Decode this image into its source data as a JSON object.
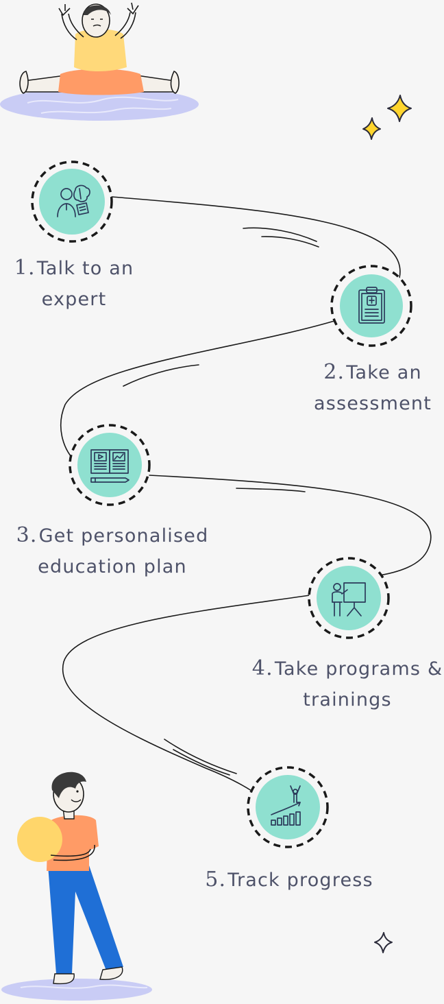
{
  "steps": [
    {
      "number": "1.",
      "lines": [
        "Talk to an",
        "expert"
      ],
      "icon": "expert-brain-icon"
    },
    {
      "number": "2.",
      "lines": [
        "Take an",
        "assessment"
      ],
      "icon": "clipboard-medical-icon"
    },
    {
      "number": "3.",
      "lines": [
        "Get personalised",
        "education plan"
      ],
      "icon": "open-book-icon"
    },
    {
      "number": "4.",
      "lines": [
        "Take programs &",
        "trainings"
      ],
      "icon": "presentation-board-icon"
    },
    {
      "number": "5.",
      "lines": [
        "Track progress"
      ],
      "icon": "progress-chart-icon"
    }
  ],
  "colors": {
    "circle_fill": "#8fe0d0",
    "icon_stroke": "#2b3a5a",
    "text": "#4e5269",
    "star_yellow": "#ffd52e",
    "platform": "#c9ccf5",
    "shirt_yellow": "#ffd97a",
    "shorts_orange": "#ff9b66",
    "ball_yellow": "#ffd66b",
    "pants_blue": "#1f6fd6"
  }
}
